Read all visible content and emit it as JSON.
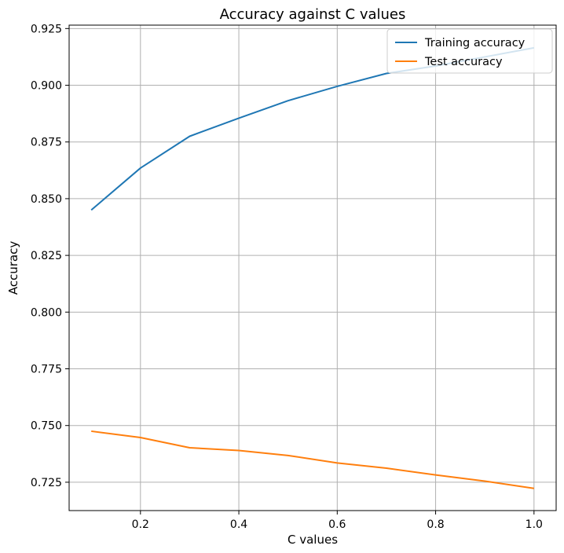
{
  "chart_data": {
    "type": "line",
    "title": "Accuracy against C values",
    "xlabel": "C values",
    "ylabel": "Accuracy",
    "xlim": [
      0.055,
      1.045
    ],
    "ylim": [
      0.7125,
      0.9265
    ],
    "xticks": [
      0.2,
      0.4,
      0.6,
      0.8,
      1.0
    ],
    "xtick_labels": [
      "0.2",
      "0.4",
      "0.6",
      "0.8",
      "1.0"
    ],
    "yticks": [
      0.725,
      0.75,
      0.775,
      0.8,
      0.825,
      0.85,
      0.875,
      0.9,
      0.925
    ],
    "ytick_labels": [
      "0.725",
      "0.750",
      "0.775",
      "0.800",
      "0.825",
      "0.850",
      "0.875",
      "0.900",
      "0.925"
    ],
    "grid": true,
    "legend_position": "top-right",
    "x": [
      0.1,
      0.2,
      0.3,
      0.4,
      0.5,
      0.6,
      0.7,
      0.8,
      0.9,
      1.0
    ],
    "series": [
      {
        "name": "Training accuracy",
        "color": "#1f77b4",
        "values": [
          0.845,
          0.8635,
          0.8775,
          0.8855,
          0.8932,
          0.8995,
          0.9052,
          0.9085,
          0.9125,
          0.9165
        ]
      },
      {
        "name": "Test accuracy",
        "color": "#ff7f0e",
        "values": [
          0.7475,
          0.7447,
          0.7402,
          0.739,
          0.7368,
          0.7335,
          0.7312,
          0.7282,
          0.7255,
          0.7223
        ]
      }
    ]
  }
}
